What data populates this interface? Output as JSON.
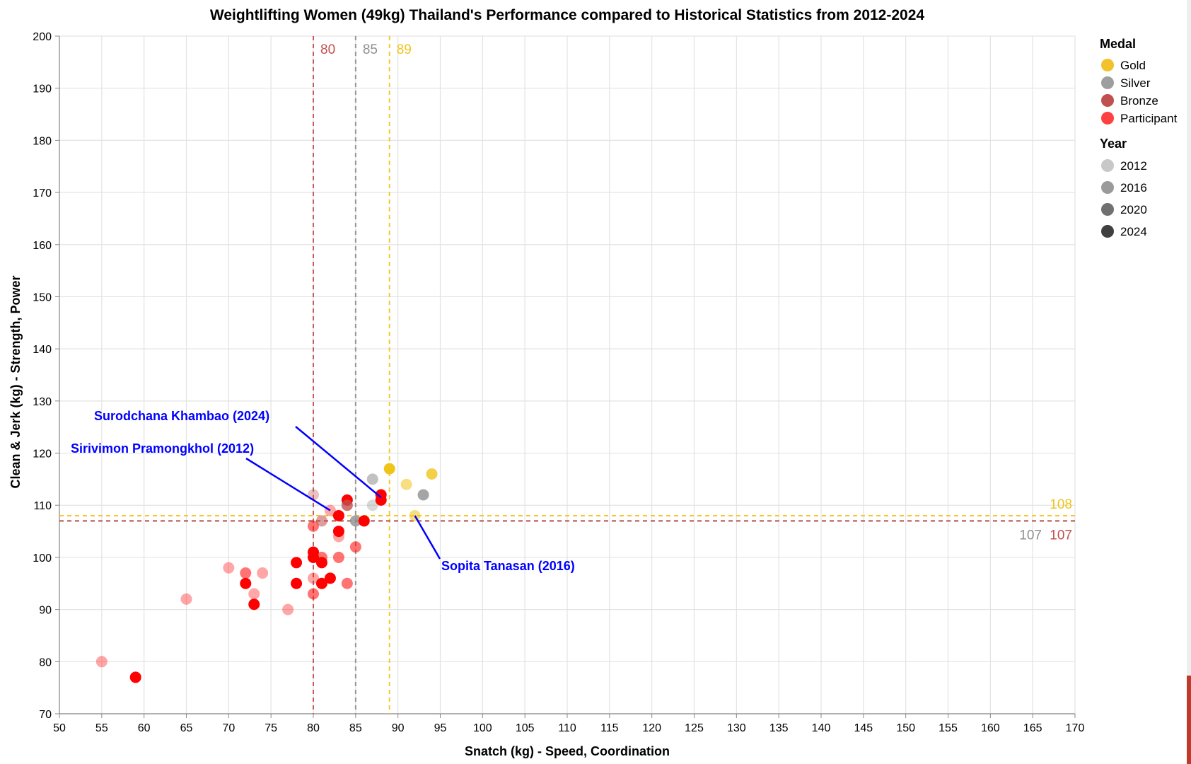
{
  "chart_data": {
    "type": "scatter",
    "title": "Weightlifting Women (49kg) Thailand's Performance compared to Historical Statistics from 2012-2024",
    "xlabel": "Snatch (kg) - Speed, Coordination",
    "ylabel": "Clean & Jerk (kg) - Strength, Power",
    "xlim": [
      50,
      170
    ],
    "ylim": [
      70,
      200
    ],
    "x_ticks": [
      "50",
      "55",
      "60",
      "65",
      "70",
      "75",
      "80",
      "85",
      "90",
      "95",
      "100",
      "105",
      "110",
      "115",
      "120",
      "125",
      "130",
      "135",
      "140",
      "145",
      "150",
      "155",
      "160",
      "165",
      "170"
    ],
    "y_ticks": [
      "70",
      "80",
      "90",
      "100",
      "110",
      "120",
      "130",
      "140",
      "150",
      "160",
      "170",
      "180",
      "190",
      "200"
    ],
    "grid": true,
    "legend_position": "right",
    "colors": {
      "Gold": "#f0c419",
      "Silver": "#8e8e8e",
      "Bronze": "#c0504d",
      "Participant": "#ff0000"
    },
    "year_opacity": {
      "2012": 0.35,
      "2016": 0.55,
      "2020": 0.8,
      "2024": 1.0
    },
    "legend_medal": {
      "title": "Medal",
      "items": [
        {
          "label": "Gold",
          "color": "#f2c22b"
        },
        {
          "label": "Silver",
          "color": "#9e9e9e"
        },
        {
          "label": "Bronze",
          "color": "#c0504d"
        },
        {
          "label": "Participant",
          "color": "#ff4040"
        }
      ]
    },
    "legend_year": {
      "title": "Year",
      "items": [
        {
          "label": "2012",
          "color": "#c8c8c8"
        },
        {
          "label": "2016",
          "color": "#9a9a9a"
        },
        {
          "label": "2020",
          "color": "#707070"
        },
        {
          "label": "2024",
          "color": "#404040"
        }
      ]
    },
    "reference_lines": [
      {
        "axis": "x",
        "value": 80,
        "label": "80",
        "color": "#c0504d"
      },
      {
        "axis": "x",
        "value": 85,
        "label": "85",
        "color": "#8e8e8e"
      },
      {
        "axis": "x",
        "value": 89,
        "label": "89",
        "color": "#f0c419"
      },
      {
        "axis": "y",
        "value": 108,
        "label": "108",
        "color": "#f0c419"
      },
      {
        "axis": "y",
        "value": 107,
        "label": "107",
        "color": "#8e8e8e"
      },
      {
        "axis": "y",
        "value": 107,
        "label": "107",
        "color": "#c0504d"
      }
    ],
    "annotations": [
      {
        "text": "Surodchana Khambao (2024)",
        "x": 88,
        "y": 111.5
      },
      {
        "text": "Sirivimon Pramongkhol (2012)",
        "x": 82,
        "y": 109
      },
      {
        "text": "Sopita Tanasan (2016)",
        "x": 92,
        "y": 108
      }
    ],
    "points": [
      {
        "x": 55,
        "y": 80,
        "medal": "Participant",
        "year": "2012"
      },
      {
        "x": 59,
        "y": 77,
        "medal": "Participant",
        "year": "2024"
      },
      {
        "x": 65,
        "y": 92,
        "medal": "Participant",
        "year": "2012"
      },
      {
        "x": 70,
        "y": 98,
        "medal": "Participant",
        "year": "2012"
      },
      {
        "x": 72,
        "y": 97,
        "medal": "Participant",
        "year": "2016"
      },
      {
        "x": 72,
        "y": 95,
        "medal": "Participant",
        "year": "2024"
      },
      {
        "x": 73,
        "y": 93,
        "medal": "Participant",
        "year": "2012"
      },
      {
        "x": 73,
        "y": 91,
        "medal": "Participant",
        "year": "2024"
      },
      {
        "x": 74,
        "y": 97,
        "medal": "Participant",
        "year": "2012"
      },
      {
        "x": 77,
        "y": 90,
        "medal": "Participant",
        "year": "2012"
      },
      {
        "x": 78,
        "y": 99,
        "medal": "Participant",
        "year": "2024"
      },
      {
        "x": 78,
        "y": 95,
        "medal": "Participant",
        "year": "2024"
      },
      {
        "x": 80,
        "y": 112,
        "medal": "Bronze",
        "year": "2012"
      },
      {
        "x": 80,
        "y": 106,
        "medal": "Participant",
        "year": "2016"
      },
      {
        "x": 80,
        "y": 101,
        "medal": "Participant",
        "year": "2024"
      },
      {
        "x": 80,
        "y": 100,
        "medal": "Participant",
        "year": "2024"
      },
      {
        "x": 80,
        "y": 96,
        "medal": "Participant",
        "year": "2012"
      },
      {
        "x": 80,
        "y": 93,
        "medal": "Participant",
        "year": "2016"
      },
      {
        "x": 81,
        "y": 107,
        "medal": "Bronze",
        "year": "2016"
      },
      {
        "x": 81,
        "y": 100,
        "medal": "Participant",
        "year": "2016"
      },
      {
        "x": 81,
        "y": 99,
        "medal": "Participant",
        "year": "2024"
      },
      {
        "x": 81,
        "y": 95,
        "medal": "Participant",
        "year": "2024"
      },
      {
        "x": 82,
        "y": 109,
        "medal": "Participant",
        "year": "2012"
      },
      {
        "x": 82,
        "y": 96,
        "medal": "Participant",
        "year": "2024"
      },
      {
        "x": 83,
        "y": 108,
        "medal": "Participant",
        "year": "2024"
      },
      {
        "x": 83,
        "y": 105,
        "medal": "Participant",
        "year": "2024"
      },
      {
        "x": 83,
        "y": 104,
        "medal": "Participant",
        "year": "2012"
      },
      {
        "x": 83,
        "y": 100,
        "medal": "Participant",
        "year": "2016"
      },
      {
        "x": 84,
        "y": 111,
        "medal": "Participant",
        "year": "2024"
      },
      {
        "x": 84,
        "y": 110,
        "medal": "Bronze",
        "year": "2020"
      },
      {
        "x": 84,
        "y": 95,
        "medal": "Participant",
        "year": "2016"
      },
      {
        "x": 85,
        "y": 107,
        "medal": "Silver",
        "year": "2020"
      },
      {
        "x": 85,
        "y": 102,
        "medal": "Participant",
        "year": "2016"
      },
      {
        "x": 86,
        "y": 107,
        "medal": "Participant",
        "year": "2024"
      },
      {
        "x": 87,
        "y": 115,
        "medal": "Silver",
        "year": "2016"
      },
      {
        "x": 87,
        "y": 110,
        "medal": "Silver",
        "year": "2012"
      },
      {
        "x": 88,
        "y": 112,
        "medal": "Participant",
        "year": "2024"
      },
      {
        "x": 88,
        "y": 111,
        "medal": "Participant",
        "year": "2024"
      },
      {
        "x": 89,
        "y": 117,
        "medal": "Gold",
        "year": "2024"
      },
      {
        "x": 91,
        "y": 114,
        "medal": "Gold",
        "year": "2016"
      },
      {
        "x": 92,
        "y": 108,
        "medal": "Gold",
        "year": "2016"
      },
      {
        "x": 93,
        "y": 112,
        "medal": "Silver",
        "year": "2020"
      },
      {
        "x": 94,
        "y": 116,
        "medal": "Gold",
        "year": "2020"
      }
    ]
  }
}
